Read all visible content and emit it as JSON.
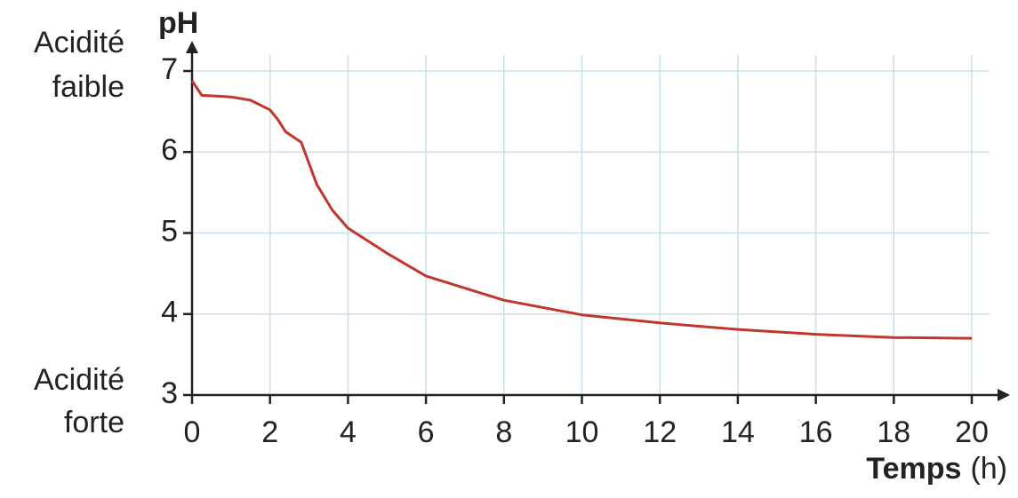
{
  "chart_data": {
    "type": "line",
    "ylabel": "pH",
    "xlabel": "Temps",
    "xunit": "(h)",
    "y_top_label": [
      "Acidité",
      "faible"
    ],
    "y_bottom_label": [
      "Acidité",
      "forte"
    ],
    "x": [
      0,
      0.25,
      1,
      1.5,
      2,
      2.2,
      2.4,
      2.8,
      3.2,
      3.6,
      4,
      5,
      6,
      8,
      10,
      12,
      14,
      16,
      18,
      20
    ],
    "values": [
      6.88,
      6.7,
      6.68,
      6.64,
      6.52,
      6.4,
      6.25,
      6.12,
      5.6,
      5.28,
      5.06,
      4.75,
      4.47,
      4.17,
      3.99,
      3.89,
      3.81,
      3.75,
      3.71,
      3.7
    ],
    "color": "#c1362a",
    "xlim": [
      0,
      20
    ],
    "xticks": [
      0,
      2,
      4,
      6,
      8,
      10,
      12,
      14,
      16,
      18,
      20
    ],
    "ylim": [
      3,
      7
    ],
    "yticks": [
      3,
      4,
      5,
      6,
      7
    ],
    "grid": true
  }
}
